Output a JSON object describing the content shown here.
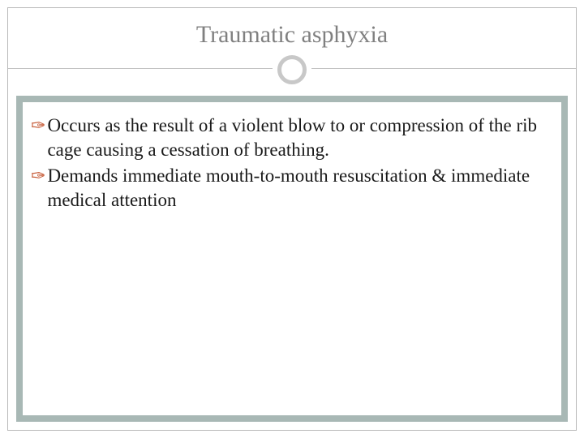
{
  "slide": {
    "title": "Traumatic asphyxia",
    "title_color": "#808080",
    "title_fontsize": 30,
    "bullet_marker": "✑",
    "bullet_marker_color": "#c45530",
    "text_color": "#1a1a1a",
    "text_fontsize": 23,
    "background_color": "#ffffff",
    "panel_background": "#a8b8b5",
    "border_color": "#b8b8b8",
    "divider_color": "#c0c0c0",
    "circle_ring_color": "#c8c8c8",
    "bullets": [
      {
        "text": "Occurs as the result of a violent blow to or compression of the rib cage causing a cessation of breathing."
      },
      {
        "text": "Demands immediate mouth-to-mouth resuscitation & immediate medical attention"
      }
    ]
  }
}
